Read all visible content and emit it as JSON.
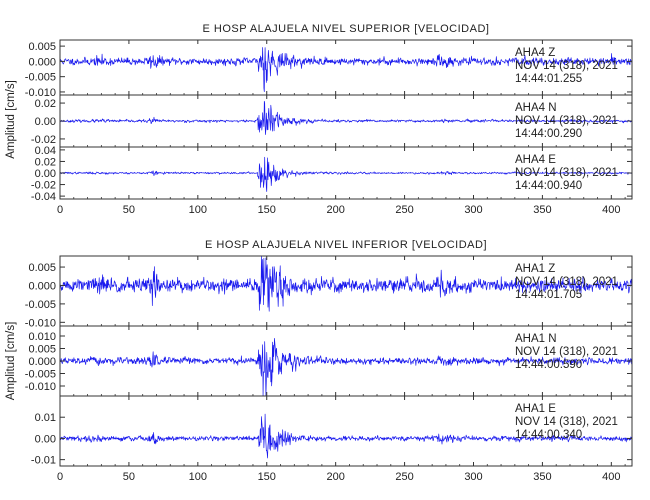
{
  "colors": {
    "trace": "#1a1aee",
    "axis": "#333333",
    "text": "#222222"
  },
  "chart_data": [
    {
      "type": "line",
      "title": "E HOSP ALAJUELA NIVEL SUPERIOR [VELOCIDAD]",
      "ylabel": "Amplitud [cm/s]",
      "xlim": [
        0,
        415
      ],
      "xticks": [
        0,
        50,
        100,
        150,
        200,
        250,
        300,
        350,
        400
      ],
      "panels": [
        {
          "station": "AHA4",
          "component": "Z",
          "date": "NOV 14 (318), 2021",
          "time": "14:44:01.255",
          "ylim": [
            -0.011,
            0.007
          ],
          "yticks": [
            0.005,
            0.0,
            -0.005,
            -0.01
          ],
          "ytick_labels": [
            "0.005",
            "0.000",
            "-0.005",
            "-0.010"
          ],
          "noise": 0.001,
          "peak": 0.0062,
          "seed": 11
        },
        {
          "station": "AHA4",
          "component": "N",
          "date": "NOV 14 (318), 2021",
          "time": "14:44:00.290",
          "ylim": [
            -0.029,
            0.029
          ],
          "yticks": [
            0.02,
            0.0,
            -0.02
          ],
          "ytick_labels": [
            "0.02",
            "0.00",
            "-0.02"
          ],
          "noise": 0.0012,
          "peak": 0.024,
          "seed": 23
        },
        {
          "station": "AHA4",
          "component": "E",
          "date": "NOV 14 (318), 2021",
          "time": "14:44:00.940",
          "ylim": [
            -0.045,
            0.045
          ],
          "yticks": [
            0.04,
            0.02,
            0.0,
            -0.02,
            -0.04
          ],
          "ytick_labels": [
            "0.04",
            "0.02",
            "0.00",
            "-0.02",
            "-0.04"
          ],
          "noise": 0.0014,
          "peak": 0.03,
          "seed": 37
        }
      ]
    },
    {
      "type": "line",
      "title": "E HOSP ALAJUELA NIVEL INFERIOR [VELOCIDAD]",
      "ylabel": "Amplitud [cm/s]",
      "xlim": [
        0,
        415
      ],
      "xticks": [
        0,
        50,
        100,
        150,
        200,
        250,
        300,
        350,
        400
      ],
      "panels": [
        {
          "station": "AHA1",
          "component": "Z",
          "date": "NOV 14 (318), 2021",
          "time": "14:44:01.705",
          "ylim": [
            -0.011,
            0.008
          ],
          "yticks": [
            0.005,
            0.0,
            -0.005,
            -0.01
          ],
          "ytick_labels": [
            "0.005",
            "0.000",
            "-0.005",
            "-0.010"
          ],
          "noise": 0.0016,
          "peak": 0.0075,
          "seed": 51
        },
        {
          "station": "AHA1",
          "component": "N",
          "date": "NOV 14 (318), 2021",
          "time": "14:44:00.590",
          "ylim": [
            -0.014,
            0.014
          ],
          "yticks": [
            0.01,
            0.005,
            0.0,
            -0.005,
            -0.01
          ],
          "ytick_labels": [
            "0.010",
            "0.005",
            "0.000",
            "-0.005",
            "-0.010"
          ],
          "noise": 0.0011,
          "peak": 0.012,
          "seed": 67
        },
        {
          "station": "AHA1",
          "component": "E",
          "date": "NOV 14 (318), 2021",
          "time": "14:44:00.340",
          "ylim": [
            -0.013,
            0.02
          ],
          "yticks": [
            0.01,
            0.0,
            -0.01
          ],
          "ytick_labels": [
            "0.01",
            "0.00",
            "-0.01"
          ],
          "noise": 0.001,
          "peak": 0.011,
          "seed": 79
        }
      ]
    }
  ]
}
